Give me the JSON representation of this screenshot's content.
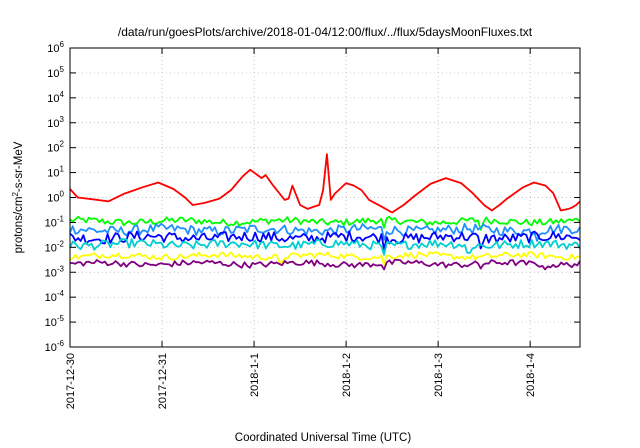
{
  "chart_data": {
    "type": "line",
    "title": "/data/run/goesPlots/archive/2018-01-04/12:00/flux/../flux/5daysMoonFluxes.txt",
    "xlabel": "Coordinated Universal Time (UTC)",
    "ylabel": {
      "prefix": "protons/cm",
      "sup": "2",
      "suffix": "-s-sr-MeV"
    },
    "yscale": "log",
    "ylim": [
      1e-06,
      1000000.0
    ],
    "xlim": [
      "2017-12-30 00:00",
      "2018-01-04 13:00"
    ],
    "grid": true,
    "legend": "none",
    "y_ticks": [
      {
        "value": 1e-06,
        "base": "10",
        "exp": "-6"
      },
      {
        "value": 1e-05,
        "base": "10",
        "exp": "-5"
      },
      {
        "value": 0.0001,
        "base": "10",
        "exp": "-4"
      },
      {
        "value": 0.001,
        "base": "10",
        "exp": "-3"
      },
      {
        "value": 0.01,
        "base": "10",
        "exp": "-2"
      },
      {
        "value": 0.1,
        "base": "10",
        "exp": "-1"
      },
      {
        "value": 1,
        "base": "10",
        "exp": "0"
      },
      {
        "value": 10.0,
        "base": "10",
        "exp": "1"
      },
      {
        "value": 100.0,
        "base": "10",
        "exp": "2"
      },
      {
        "value": 1000.0,
        "base": "10",
        "exp": "3"
      },
      {
        "value": 10000.0,
        "base": "10",
        "exp": "4"
      },
      {
        "value": 100000.0,
        "base": "10",
        "exp": "5"
      },
      {
        "value": 1000000.0,
        "base": "10",
        "exp": "6"
      }
    ],
    "x_ticks": [
      {
        "value": "2017-12-30 00:00",
        "label": "2017-12-30"
      },
      {
        "value": "2017-12-31 00:00",
        "label": "2017-12-31"
      },
      {
        "value": "2018-01-01 00:00",
        "label": "2018-1-1"
      },
      {
        "value": "2018-01-02 00:00",
        "label": "2018-1-2"
      },
      {
        "value": "2018-01-03 00:00",
        "label": "2018-1-3"
      },
      {
        "value": "2018-01-04 00:00",
        "label": "2018-1-4"
      }
    ],
    "series": [
      {
        "color": "#ff0000",
        "points": [
          [
            "2017-12-30 00:00",
            2.2
          ],
          [
            "2017-12-30 02:00",
            1.0
          ],
          [
            "2017-12-30 06:00",
            0.85
          ],
          [
            "2017-12-30 10:00",
            0.7
          ],
          [
            "2017-12-30 14:00",
            1.4
          ],
          [
            "2017-12-30 19:00",
            2.6
          ],
          [
            "2017-12-30 23:00",
            4.0
          ],
          [
            "2017-12-31 03:00",
            2.2
          ],
          [
            "2017-12-31 06:00",
            1.0
          ],
          [
            "2017-12-31 08:00",
            0.5
          ],
          [
            "2017-12-31 11:00",
            0.6
          ],
          [
            "2017-12-31 15:00",
            0.9
          ],
          [
            "2017-12-31 18:00",
            2.0
          ],
          [
            "2017-12-31 21:00",
            7.0
          ],
          [
            "2017-12-31 23:00",
            13.0
          ],
          [
            "2018-01-01 02:00",
            6.0
          ],
          [
            "2018-01-01 03:00",
            8.0
          ],
          [
            "2018-01-01 05:00",
            3.0
          ],
          [
            "2018-01-01 08:00",
            0.8
          ],
          [
            "2018-01-01 09:00",
            0.9
          ],
          [
            "2018-01-01 10:00",
            3.0
          ],
          [
            "2018-01-01 12:00",
            0.5
          ],
          [
            "2018-01-01 14:00",
            0.35
          ],
          [
            "2018-01-01 16:00",
            0.45
          ],
          [
            "2018-01-01 17:00",
            0.5
          ],
          [
            "2018-01-01 18:00",
            2.0
          ],
          [
            "2018-01-01 19:00",
            55
          ],
          [
            "2018-01-01 20:00",
            0.8
          ],
          [
            "2018-01-01 21:00",
            1.4
          ],
          [
            "2018-01-02 00:00",
            3.8
          ],
          [
            "2018-01-02 02:00",
            3.0
          ],
          [
            "2018-01-02 04:00",
            2.0
          ],
          [
            "2018-01-02 06:00",
            0.8
          ],
          [
            "2018-01-02 09:00",
            0.45
          ],
          [
            "2018-01-02 12:00",
            0.25
          ],
          [
            "2018-01-02 15:00",
            0.5
          ],
          [
            "2018-01-02 18:00",
            1.2
          ],
          [
            "2018-01-02 22:00",
            3.5
          ],
          [
            "2018-01-03 02:00",
            6.0
          ],
          [
            "2018-01-03 06:00",
            3.8
          ],
          [
            "2018-01-03 09:00",
            1.5
          ],
          [
            "2018-01-03 12:00",
            0.5
          ],
          [
            "2018-01-03 14:00",
            0.3
          ],
          [
            "2018-01-03 16:00",
            0.5
          ],
          [
            "2018-01-03 18:00",
            0.9
          ],
          [
            "2018-01-03 22:00",
            2.5
          ],
          [
            "2018-01-04 01:00",
            4.0
          ],
          [
            "2018-01-04 04:00",
            3.0
          ],
          [
            "2018-01-04 06:00",
            1.5
          ],
          [
            "2018-01-04 08:00",
            0.3
          ],
          [
            "2018-01-04 10:00",
            0.35
          ],
          [
            "2018-01-04 11:00",
            0.4
          ],
          [
            "2018-01-04 12:00",
            0.5
          ],
          [
            "2018-01-04 13:00",
            0.7
          ]
        ]
      },
      {
        "color": "#00ff00",
        "base": 0.11,
        "amp": 0.14,
        "spikes": [
          [
            "2018-01-02 10:00",
            0.06
          ],
          [
            "2018-01-03 11:00",
            0.05
          ]
        ]
      },
      {
        "color": "#1e90ff",
        "base": 0.05,
        "amp": 0.2,
        "spikes": [
          [
            "2018-01-02 10:00",
            0.02
          ],
          [
            "2018-01-04 02:00",
            0.018
          ]
        ]
      },
      {
        "color": "#0000ff",
        "base": 0.025,
        "amp": 0.22,
        "spikes": [
          [
            "2018-01-02 10:00",
            0.008
          ],
          [
            "2018-01-03 11:00",
            0.009
          ]
        ]
      },
      {
        "color": "#00ced1",
        "base": 0.013,
        "amp": 0.18,
        "spikes": [
          [
            "2018-01-02 10:00",
            0.005
          ],
          [
            "2018-01-03 08:00",
            0.006
          ]
        ]
      },
      {
        "color": "#ffff00",
        "base": 0.0045,
        "amp": 0.12,
        "spikes": [
          [
            "2018-01-01 07:00",
            0.0025
          ],
          [
            "2018-01-02 10:00",
            0.002
          ]
        ]
      },
      {
        "color": "#800080",
        "base": 0.0022,
        "amp": 0.12,
        "spikes": [
          [
            "2018-01-02 10:00",
            0.0013
          ],
          [
            "2018-01-03 11:00",
            0.0014
          ],
          [
            "2018-01-04 04:00",
            0.0013
          ]
        ]
      }
    ]
  }
}
